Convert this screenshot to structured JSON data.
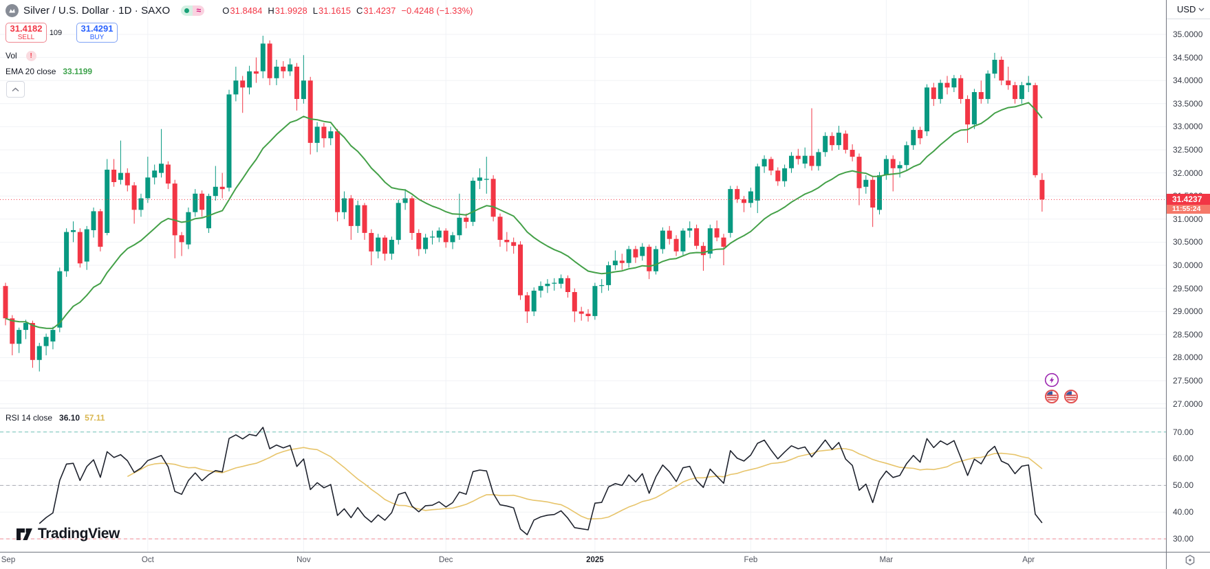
{
  "header": {
    "symbol_title": "Silver / U.S. Dollar · 1D · SAXO",
    "status": {
      "market_dot": "market-open",
      "delay_symbol": "≈"
    },
    "ohlc": {
      "o_label": "O",
      "o": "31.8484",
      "h_label": "H",
      "h": "31.9928",
      "l_label": "L",
      "l": "31.1615",
      "c_label": "C",
      "c": "31.4237",
      "change": "−0.4248 (−1.33%)"
    },
    "trade": {
      "sell_price": "31.4182",
      "sell_label": "SELL",
      "spread": "109",
      "buy_price": "31.4291",
      "buy_label": "BUY"
    },
    "indicators": {
      "vol_label": "Vol",
      "ema_label": "EMA 20 close",
      "ema_value": "33.1199"
    }
  },
  "rsi_legend": {
    "label": "RSI 14 close",
    "value": "36.10",
    "ma_value": "57.11"
  },
  "price_axis": {
    "currency": "USD",
    "labels": [
      "35.0000",
      "34.5000",
      "34.0000",
      "33.5000",
      "33.0000",
      "32.5000",
      "32.0000",
      "31.5000",
      "31.0000",
      "30.5000",
      "30.0000",
      "29.5000",
      "29.0000",
      "28.5000",
      "28.0000",
      "27.5000",
      "27.0000"
    ],
    "last_price": "31.4237",
    "countdown": "11:55:24"
  },
  "rsi_axis": {
    "labels": [
      "70.00",
      "60.00",
      "50.00",
      "40.00",
      "30.00"
    ]
  },
  "time_axis": {
    "labels": [
      {
        "text": "Sep",
        "index": 0,
        "gridline": false,
        "bold": false
      },
      {
        "text": "Oct",
        "index": 21,
        "gridline": true,
        "bold": false
      },
      {
        "text": "Nov",
        "index": 44,
        "gridline": true,
        "bold": false
      },
      {
        "text": "Dec",
        "index": 65,
        "gridline": true,
        "bold": false
      },
      {
        "text": "2025",
        "index": 87,
        "gridline": true,
        "bold": true
      },
      {
        "text": "Feb",
        "index": 110,
        "gridline": true,
        "bold": false
      },
      {
        "text": "Mar",
        "index": 130,
        "gridline": true,
        "bold": false
      },
      {
        "text": "Apr",
        "index": 151,
        "gridline": true,
        "bold": false
      }
    ]
  },
  "watermark": {
    "text": "TradingView"
  },
  "colors": {
    "up": "#089981",
    "down": "#f23645",
    "ema": "#43a047",
    "rsi_line": "#1e222d",
    "rsi_ma": "#e7c46a",
    "grid": "#f0f2f6",
    "axis_border": "#70747e",
    "buy": "#2962ff",
    "sell": "#f23645",
    "tag_bg": "#f23645",
    "countdown_bg": "#f5796a",
    "band_upper": "rgba(8,153,129,0.55)",
    "band_middle": "rgba(120,123,134,0.6)",
    "band_lower": "rgba(242,54,69,0.55)",
    "event_flash": "#9c27b0",
    "event_flag_ring": "#e25050"
  },
  "chart_data": {
    "type": "candlestick",
    "title": "Silver / U.S. Dollar, 1D, SAXO",
    "price_range": [
      27.0,
      35.0
    ],
    "grid_step": 0.5,
    "last_price": 31.4237,
    "x_range": [
      "Sep 2024",
      "Apr 2025"
    ],
    "legend_position": "top-left",
    "grid": true,
    "candles": [
      [
        29.55,
        29.62,
        28.7,
        28.85
      ],
      [
        28.85,
        28.92,
        28.05,
        28.3
      ],
      [
        28.3,
        28.65,
        28.1,
        28.6
      ],
      [
        28.6,
        28.82,
        28.4,
        28.75
      ],
      [
        28.75,
        28.8,
        27.78,
        27.95
      ],
      [
        27.95,
        28.32,
        27.7,
        28.25
      ],
      [
        28.25,
        28.52,
        28.05,
        28.45
      ],
      [
        28.35,
        28.67,
        28.18,
        28.6
      ],
      [
        28.65,
        29.95,
        28.55,
        29.87
      ],
      [
        29.87,
        30.8,
        29.75,
        30.72
      ],
      [
        30.72,
        30.95,
        30.5,
        30.76
      ],
      [
        30.72,
        30.8,
        29.95,
        30.04
      ],
      [
        30.08,
        30.85,
        29.9,
        30.78
      ],
      [
        30.76,
        31.25,
        30.6,
        31.17
      ],
      [
        31.17,
        31.22,
        30.3,
        30.4
      ],
      [
        30.7,
        32.3,
        30.65,
        32.07
      ],
      [
        32.07,
        32.3,
        31.7,
        31.8
      ],
      [
        31.85,
        32.7,
        31.75,
        32.0
      ],
      [
        32.0,
        32.1,
        31.6,
        31.73
      ],
      [
        31.73,
        31.8,
        30.9,
        31.2
      ],
      [
        31.2,
        31.55,
        31.05,
        31.45
      ],
      [
        31.45,
        32.35,
        31.35,
        31.9
      ],
      [
        31.9,
        32.18,
        31.75,
        32.05
      ],
      [
        32.0,
        32.95,
        31.9,
        32.2
      ],
      [
        32.18,
        32.25,
        31.65,
        31.77
      ],
      [
        31.77,
        31.85,
        30.15,
        30.65
      ],
      [
        30.65,
        30.72,
        30.2,
        30.5
      ],
      [
        30.45,
        31.25,
        30.35,
        31.15
      ],
      [
        31.15,
        31.65,
        31.05,
        31.55
      ],
      [
        31.55,
        31.62,
        31.05,
        31.2
      ],
      [
        30.8,
        31.55,
        30.7,
        31.5
      ],
      [
        31.5,
        32.15,
        31.4,
        31.7
      ],
      [
        31.7,
        32.0,
        31.45,
        31.65
      ],
      [
        31.68,
        33.8,
        31.6,
        33.7
      ],
      [
        33.7,
        34.3,
        33.55,
        34.0
      ],
      [
        34.0,
        34.1,
        33.3,
        33.85
      ],
      [
        33.85,
        34.32,
        33.7,
        34.2
      ],
      [
        34.2,
        34.5,
        33.95,
        34.15
      ],
      [
        34.2,
        34.97,
        34.05,
        34.8
      ],
      [
        34.8,
        34.87,
        33.9,
        34.05
      ],
      [
        34.05,
        34.45,
        33.9,
        34.3
      ],
      [
        34.3,
        34.42,
        34.05,
        34.2
      ],
      [
        34.2,
        34.48,
        34.1,
        34.35
      ],
      [
        34.3,
        34.38,
        33.35,
        33.6
      ],
      [
        33.6,
        34.55,
        33.5,
        34.0
      ],
      [
        34.0,
        34.08,
        32.4,
        32.65
      ],
      [
        32.65,
        33.1,
        32.45,
        33.0
      ],
      [
        33.0,
        33.08,
        32.55,
        32.75
      ],
      [
        32.75,
        33.0,
        32.6,
        32.9
      ],
      [
        32.9,
        32.95,
        30.95,
        31.15
      ],
      [
        31.15,
        31.6,
        31.0,
        31.45
      ],
      [
        31.45,
        31.52,
        30.55,
        30.85
      ],
      [
        30.85,
        31.4,
        30.7,
        31.3
      ],
      [
        31.3,
        31.35,
        30.55,
        30.7
      ],
      [
        30.7,
        30.78,
        30.0,
        30.3
      ],
      [
        30.3,
        30.68,
        30.15,
        30.6
      ],
      [
        30.6,
        30.65,
        30.1,
        30.25
      ],
      [
        30.25,
        30.62,
        30.12,
        30.55
      ],
      [
        30.55,
        31.42,
        30.45,
        31.35
      ],
      [
        31.35,
        31.65,
        31.2,
        31.45
      ],
      [
        31.45,
        31.5,
        30.55,
        30.7
      ],
      [
        30.7,
        30.78,
        30.2,
        30.35
      ],
      [
        30.35,
        30.68,
        30.25,
        30.6
      ],
      [
        30.6,
        30.75,
        30.45,
        30.62
      ],
      [
        30.6,
        30.82,
        30.5,
        30.75
      ],
      [
        30.75,
        30.8,
        30.38,
        30.5
      ],
      [
        30.5,
        30.72,
        30.35,
        30.65
      ],
      [
        30.65,
        31.55,
        30.55,
        31.03
      ],
      [
        31.03,
        31.12,
        30.8,
        30.94
      ],
      [
        30.94,
        31.9,
        30.85,
        31.83
      ],
      [
        31.83,
        32.1,
        31.65,
        31.9
      ],
      [
        31.85,
        32.35,
        31.55,
        31.87
      ],
      [
        31.87,
        31.95,
        30.95,
        31.05
      ],
      [
        31.05,
        31.12,
        30.4,
        30.55
      ],
      [
        30.55,
        30.72,
        30.3,
        30.5
      ],
      [
        30.5,
        30.6,
        30.25,
        30.42
      ],
      [
        30.45,
        30.52,
        29.25,
        29.35
      ],
      [
        29.35,
        29.42,
        28.75,
        29.0
      ],
      [
        29.0,
        29.52,
        28.9,
        29.45
      ],
      [
        29.45,
        29.65,
        29.3,
        29.55
      ],
      [
        29.55,
        29.7,
        29.4,
        29.6
      ],
      [
        29.6,
        29.72,
        29.45,
        29.62
      ],
      [
        29.6,
        29.8,
        29.5,
        29.72
      ],
      [
        29.72,
        29.78,
        29.3,
        29.42
      ],
      [
        29.42,
        29.5,
        28.77,
        29.0
      ],
      [
        29.0,
        29.1,
        28.8,
        28.95
      ],
      [
        28.95,
        29.05,
        28.78,
        28.9
      ],
      [
        28.9,
        29.62,
        28.82,
        29.55
      ],
      [
        29.55,
        29.7,
        29.4,
        29.57
      ],
      [
        29.57,
        30.08,
        29.45,
        30.0
      ],
      [
        30.0,
        30.32,
        29.9,
        30.1
      ],
      [
        30.1,
        30.25,
        29.9,
        30.05
      ],
      [
        30.05,
        30.42,
        29.95,
        30.35
      ],
      [
        30.35,
        30.42,
        30.05,
        30.17
      ],
      [
        30.2,
        30.48,
        30.1,
        30.4
      ],
      [
        30.4,
        30.45,
        29.7,
        29.87
      ],
      [
        29.87,
        30.42,
        29.8,
        30.35
      ],
      [
        30.35,
        30.82,
        30.25,
        30.75
      ],
      [
        30.75,
        30.85,
        30.45,
        30.57
      ],
      [
        30.57,
        30.65,
        30.2,
        30.3
      ],
      [
        30.3,
        30.8,
        30.22,
        30.75
      ],
      [
        30.75,
        30.95,
        30.6,
        30.8
      ],
      [
        30.8,
        30.88,
        30.35,
        30.42
      ],
      [
        30.42,
        30.5,
        29.88,
        30.22
      ],
      [
        30.25,
        30.88,
        30.15,
        30.8
      ],
      [
        30.8,
        30.97,
        30.52,
        30.6
      ],
      [
        30.6,
        30.68,
        30.0,
        30.4
      ],
      [
        30.7,
        31.72,
        30.6,
        31.65
      ],
      [
        31.65,
        31.72,
        31.35,
        31.43
      ],
      [
        31.43,
        31.5,
        31.15,
        31.35
      ],
      [
        31.35,
        31.68,
        31.25,
        31.6
      ],
      [
        31.4,
        32.2,
        31.13,
        32.14
      ],
      [
        32.14,
        32.38,
        32.0,
        32.3
      ],
      [
        32.3,
        32.35,
        31.95,
        32.05
      ],
      [
        32.05,
        32.12,
        31.72,
        31.82
      ],
      [
        31.82,
        32.18,
        31.7,
        32.1
      ],
      [
        32.1,
        32.45,
        32.0,
        32.37
      ],
      [
        32.37,
        32.52,
        32.18,
        32.3
      ],
      [
        32.2,
        32.55,
        32.1,
        32.37
      ],
      [
        32.37,
        33.4,
        32.05,
        32.15
      ],
      [
        32.15,
        32.52,
        32.05,
        32.45
      ],
      [
        32.45,
        32.88,
        32.35,
        32.8
      ],
      [
        32.8,
        32.88,
        32.48,
        32.6
      ],
      [
        32.6,
        33.02,
        32.5,
        32.87
      ],
      [
        32.85,
        32.92,
        32.42,
        32.5
      ],
      [
        32.5,
        32.62,
        32.25,
        32.35
      ],
      [
        32.35,
        32.42,
        31.3,
        31.67
      ],
      [
        31.7,
        31.95,
        31.55,
        31.85
      ],
      [
        31.85,
        31.92,
        30.83,
        31.25
      ],
      [
        31.2,
        32.02,
        31.1,
        31.95
      ],
      [
        31.95,
        32.38,
        31.85,
        32.3
      ],
      [
        32.3,
        32.38,
        31.6,
        32.1
      ],
      [
        32.1,
        32.25,
        31.9,
        32.17
      ],
      [
        32.17,
        32.68,
        32.05,
        32.6
      ],
      [
        32.6,
        33.0,
        32.5,
        32.93
      ],
      [
        32.93,
        33.0,
        32.62,
        32.75
      ],
      [
        32.9,
        33.92,
        32.8,
        33.85
      ],
      [
        33.85,
        33.95,
        33.45,
        33.6
      ],
      [
        33.6,
        34.02,
        33.5,
        33.95
      ],
      [
        33.95,
        34.1,
        33.7,
        33.85
      ],
      [
        33.85,
        34.12,
        33.75,
        34.05
      ],
      [
        34.05,
        34.12,
        33.5,
        33.6
      ],
      [
        33.6,
        33.68,
        32.65,
        33.05
      ],
      [
        33.05,
        33.82,
        32.95,
        33.75
      ],
      [
        33.75,
        34.0,
        33.5,
        33.6
      ],
      [
        33.6,
        34.22,
        33.5,
        34.15
      ],
      [
        34.15,
        34.6,
        34.05,
        34.45
      ],
      [
        34.45,
        34.52,
        33.9,
        34.0
      ],
      [
        34.0,
        34.3,
        33.8,
        33.9
      ],
      [
        33.9,
        33.97,
        33.5,
        33.6
      ],
      [
        33.6,
        33.97,
        33.5,
        33.9
      ],
      [
        33.9,
        34.1,
        33.75,
        33.95
      ],
      [
        33.9,
        33.95,
        31.9,
        31.95
      ],
      [
        31.8484,
        31.9928,
        31.1615,
        31.4237
      ]
    ],
    "overlays": [
      {
        "type": "ema",
        "length": 20,
        "label": "EMA 20 close",
        "value": 33.1199
      }
    ],
    "lower_panel": {
      "type": "rsi",
      "length": 14,
      "ma_length": 14,
      "levels": [
        70,
        60,
        50,
        40,
        30
      ],
      "upper_band": 70,
      "middle_band": 50,
      "lower_band": 30,
      "current": 36.1,
      "ma_current": 57.11
    }
  },
  "event_markers": {
    "flash": {
      "x": 1529,
      "y": 553
    },
    "flags": [
      {
        "x": 1529,
        "y": 577
      },
      {
        "x": 1557,
        "y": 577
      }
    ]
  }
}
